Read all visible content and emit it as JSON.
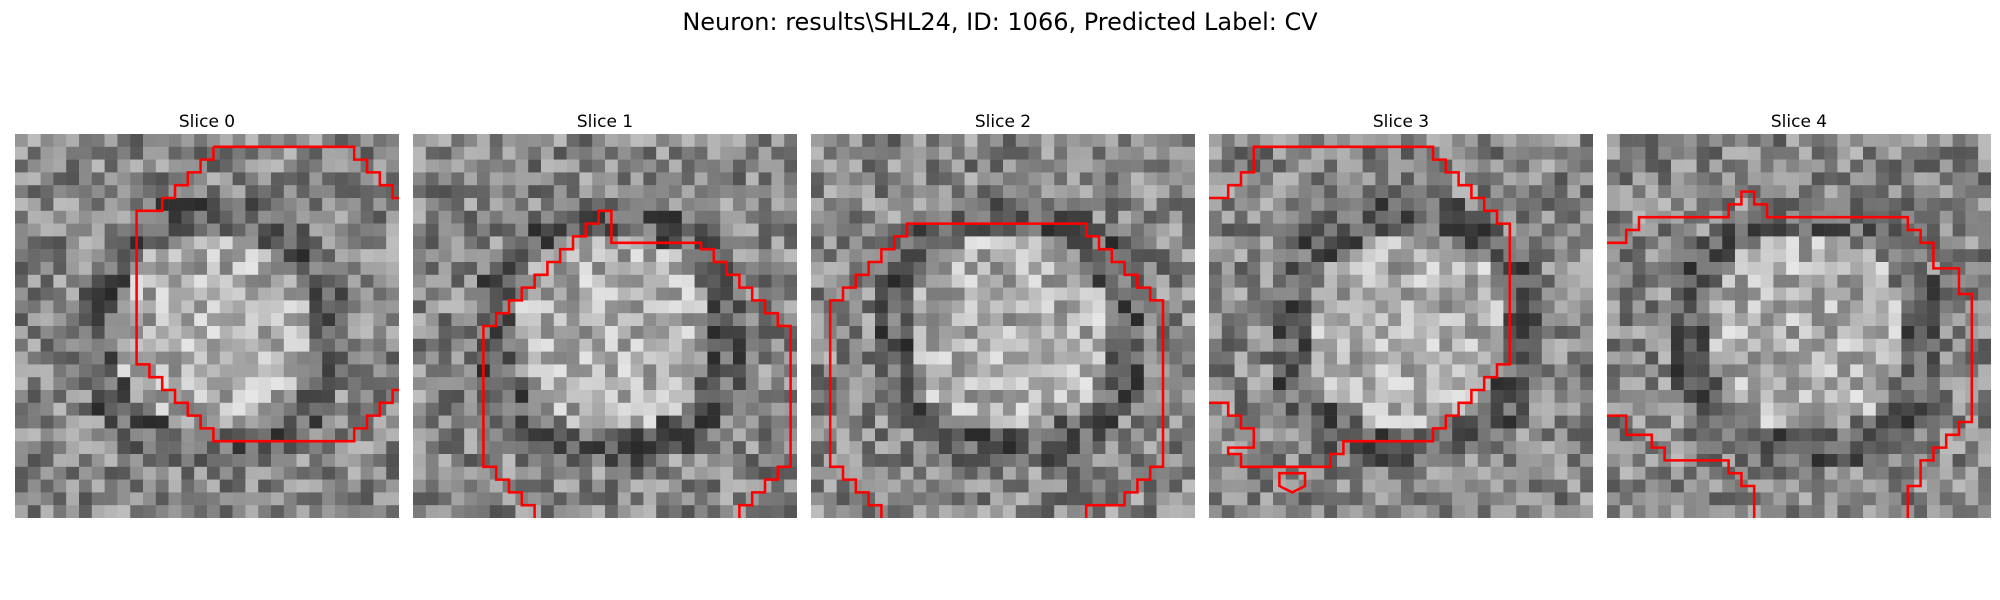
{
  "figure": {
    "title": "Neuron: results\\SHL24, ID: 1066, Predicted Label: CV"
  },
  "panels": [
    {
      "title": "Slice 0"
    },
    {
      "title": "Slice 1"
    },
    {
      "title": "Slice 2"
    },
    {
      "title": "Slice 3"
    },
    {
      "title": "Slice 4"
    }
  ],
  "colors": {
    "contour": "#ff0000",
    "background": "#ffffff"
  }
}
